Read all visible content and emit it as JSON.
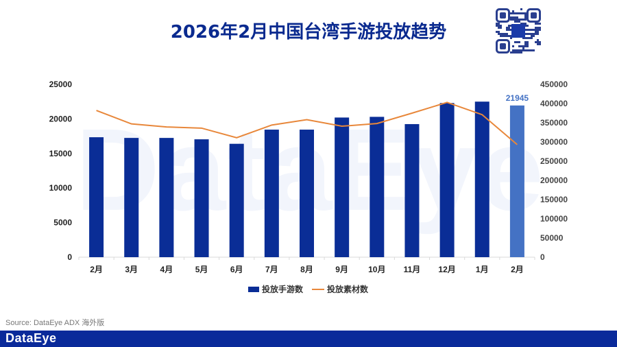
{
  "title": "2026年2月中国台湾手游投放趋势",
  "watermark": "DataEye",
  "source": "Source: DataEye ADX 海外版",
  "footer_logo": "DataEye",
  "colors": {
    "bar": "#0a2d96",
    "bar_highlight": "#4472c4",
    "line": "#e8873a",
    "title": "#0a2a8f",
    "footer": "#0a2a9a"
  },
  "chart_data": {
    "type": "bar+line",
    "categories": [
      "2月",
      "3月",
      "4月",
      "5月",
      "6月",
      "7月",
      "8月",
      "9月",
      "10月",
      "11月",
      "12月",
      "1月",
      "2月"
    ],
    "series": [
      {
        "name": "投放手游数",
        "type": "bar",
        "axis": "left",
        "values": [
          17350,
          17250,
          17250,
          17050,
          16400,
          18450,
          18450,
          20200,
          20300,
          19250,
          22300,
          22500,
          21945
        ]
      },
      {
        "name": "投放素材数",
        "type": "line",
        "axis": "right",
        "values": [
          382000,
          347000,
          339000,
          336000,
          311000,
          344000,
          358000,
          341000,
          348000,
          375000,
          403000,
          371000,
          293000
        ]
      }
    ],
    "data_labels": [
      {
        "index": 12,
        "text": "21945"
      }
    ],
    "y_left": {
      "ylim": [
        0,
        25000
      ],
      "ticks": [
        "0",
        "5000",
        "10000",
        "15000",
        "20000",
        "25000"
      ]
    },
    "y_right": {
      "ylim": [
        0,
        450000
      ],
      "ticks": [
        "0",
        "50000",
        "100000",
        "150000",
        "200000",
        "250000",
        "300000",
        "350000",
        "400000",
        "450000"
      ]
    },
    "grid": false,
    "legend_position": "bottom"
  }
}
